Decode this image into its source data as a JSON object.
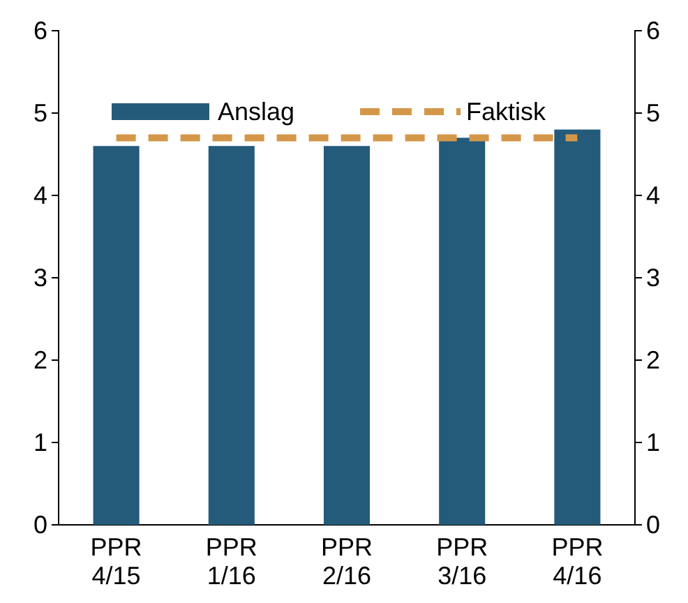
{
  "chart_data": {
    "type": "bar",
    "categories": [
      "PPR 4/15",
      "PPR 1/16",
      "PPR 2/16",
      "PPR 3/16",
      "PPR 4/16"
    ],
    "series": [
      {
        "name": "Anslag",
        "color": "#245b7a",
        "values": [
          4.6,
          4.6,
          4.6,
          4.7,
          4.8
        ]
      },
      {
        "name": "Faktisk",
        "type": "line",
        "color": "#d4974a",
        "line_style": "dashed",
        "values": [
          4.7,
          4.7,
          4.7,
          4.7,
          4.7
        ]
      }
    ],
    "ylim": [
      0,
      6
    ],
    "yticks": [
      0,
      1,
      2,
      3,
      4,
      5,
      6
    ],
    "y2lim": [
      0,
      6
    ],
    "y2ticks": [
      0,
      1,
      2,
      3,
      4,
      5,
      6
    ],
    "grid": false,
    "legend": "top",
    "marker": "none"
  }
}
